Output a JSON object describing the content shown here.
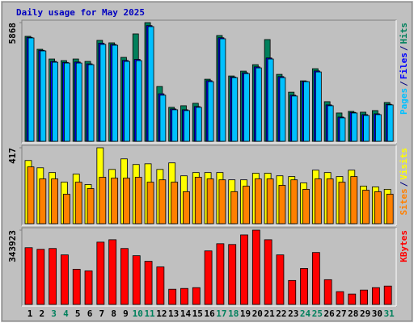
{
  "chart_data": {
    "type": "bar",
    "title": "Daily usage for May 2025",
    "categories": [
      "1",
      "2",
      "3",
      "4",
      "5",
      "6",
      "7",
      "8",
      "9",
      "10",
      "11",
      "12",
      "13",
      "14",
      "15",
      "16",
      "17",
      "18",
      "19",
      "20",
      "21",
      "22",
      "23",
      "24",
      "25",
      "26",
      "27",
      "28",
      "29",
      "30",
      "31"
    ],
    "category_colors": [
      "#000000",
      "#000000",
      "#00805c",
      "#00805c",
      "#000000",
      "#000000",
      "#000000",
      "#000000",
      "#000000",
      "#00805c",
      "#00805c",
      "#000000",
      "#000000",
      "#000000",
      "#000000",
      "#000000",
      "#00805c",
      "#00805c",
      "#000000",
      "#000000",
      "#000000",
      "#000000",
      "#000000",
      "#00805c",
      "#00805c",
      "#000000",
      "#000000",
      "#000000",
      "#000000",
      "#000000",
      "#00805c"
    ],
    "legend_separator": "/",
    "panels": [
      {
        "ylim": [
          0,
          5868
        ],
        "yticks": [
          5868
        ],
        "series": [
          {
            "name": "Hits",
            "color": "#00805c",
            "values": [
              5190,
              4550,
              4070,
              3990,
              4070,
              3950,
              4990,
              4870,
              4150,
              5310,
              5868,
              2710,
              1680,
              1760,
              1880,
              3070,
              5230,
              3230,
              3470,
              3790,
              5030,
              3310,
              2430,
              2990,
              3590,
              1960,
              1400,
              1480,
              1440,
              1520,
              1920
            ]
          },
          {
            "name": "Files",
            "color": "#0000ff",
            "values": [
              5140,
              4500,
              3950,
              3900,
              3920,
              3830,
              4850,
              4790,
              4000,
              4050,
              5720,
              2350,
              1600,
              1560,
              1720,
              3000,
              5120,
              3180,
              3390,
              3680,
              4120,
              3200,
              2280,
              2960,
              3480,
              1800,
              1200,
              1430,
              1320,
              1360,
              1830
            ]
          },
          {
            "name": "Pages",
            "color": "#00c0ff",
            "values": [
              5110,
              4470,
              3910,
              3870,
              3870,
              3790,
              4790,
              4750,
              3950,
              3990,
              5670,
              2280,
              1560,
              1520,
              1680,
              2950,
              5070,
              3150,
              3350,
              3630,
              4070,
              3150,
              2240,
              2950,
              3430,
              1760,
              1160,
              1400,
              1280,
              1320,
              1800
            ]
          }
        ]
      },
      {
        "ylim": [
          0,
          417
        ],
        "yticks": [
          417
        ],
        "series": [
          {
            "name": "Visits",
            "color": "#ffff00",
            "values": [
              347,
              307,
              281,
              228,
              272,
              215,
              417,
              298,
              356,
              325,
              329,
              298,
              334,
              263,
              281,
              281,
              281,
              241,
              241,
              277,
              277,
              263,
              259,
              224,
              294,
              281,
              259,
              294,
              206,
              202,
              189
            ]
          },
          {
            "name": "Sites",
            "color": "#ff8000",
            "values": [
              312,
              246,
              246,
              162,
              228,
              193,
              255,
              250,
              250,
              255,
              228,
              241,
              228,
              176,
              255,
              246,
              241,
              176,
              206,
              246,
              246,
              211,
              241,
              189,
              246,
              246,
              228,
              259,
              184,
              176,
              162
            ]
          }
        ]
      },
      {
        "ylim": [
          0,
          343923
        ],
        "yticks": [
          343923
        ],
        "series": [
          {
            "name": "KBytes",
            "color": "#ff0000",
            "values": [
              262600,
              255200,
              258900,
              229300,
              162700,
              155300,
              288400,
              299500,
              258900,
              225600,
              199700,
              173800,
              70300,
              74000,
              77700,
              247800,
              281000,
              277400,
              321700,
              343923,
              299500,
              229300,
              110900,
              166400,
              240400,
              114600,
              59200,
              48100,
              66600,
              77700,
              85100
            ]
          }
        ]
      }
    ]
  }
}
